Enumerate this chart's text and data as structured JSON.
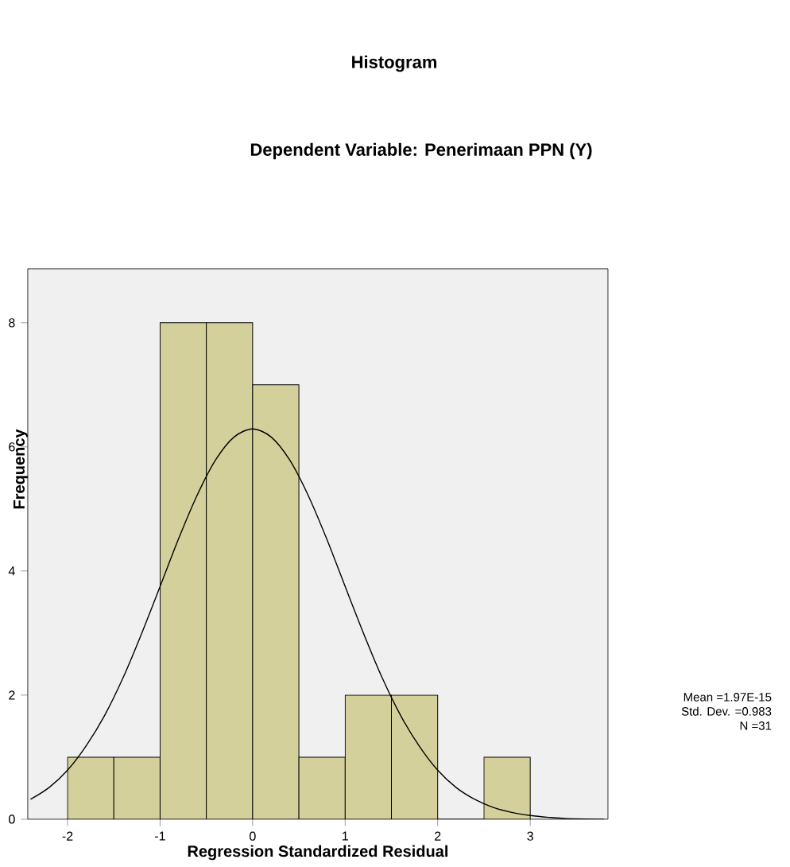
{
  "chart_data": {
    "type": "histogram",
    "title": "Histogram",
    "subtitle": "Dependent Variable: Penerimaan PPN (Y)",
    "xlabel": "Regression Standardized Residual",
    "ylabel": "Frequency",
    "xlim": [
      -2.43,
      3.84
    ],
    "ylim": [
      0,
      8.87
    ],
    "xticks": [
      -2,
      -1,
      0,
      1,
      2,
      3
    ],
    "yticks": [
      0,
      2,
      4,
      6,
      8
    ],
    "grid": false,
    "series": [
      {
        "type": "histogram",
        "color": "#d4d09b",
        "bins": [
          -2,
          -1.5,
          -1,
          -0.5,
          0,
          0.5,
          1,
          1.5,
          2,
          2.5,
          3
        ],
        "values": [
          1,
          1,
          8,
          8,
          7,
          1,
          2,
          2,
          0,
          1
        ]
      },
      {
        "type": "line",
        "color": "#000000",
        "x": [
          -2.4,
          -2.2,
          -2.0,
          -1.8,
          -1.6,
          -1.4,
          -1.2,
          -1.0,
          -0.8,
          -0.6,
          -0.4,
          -0.2,
          0,
          0.2,
          0.4,
          0.6,
          0.8,
          1.0,
          1.2,
          1.4,
          1.6,
          1.8,
          2.0,
          2.2,
          2.4,
          2.6,
          2.8,
          3.0,
          3.2,
          3.4,
          3.8
        ],
        "values": [
          0.32,
          0.51,
          0.79,
          1.18,
          1.67,
          2.28,
          2.99,
          3.75,
          4.52,
          5.22,
          5.79,
          6.16,
          6.29,
          6.16,
          5.79,
          5.22,
          4.52,
          3.75,
          2.99,
          2.28,
          1.67,
          1.18,
          0.79,
          0.51,
          0.32,
          0.19,
          0.11,
          0.06,
          0.03,
          0.01,
          0.0
        ]
      }
    ],
    "annotations": [
      "Mean =1.97E-15",
      "Std. Dev. =0.983",
      "N =31"
    ]
  }
}
